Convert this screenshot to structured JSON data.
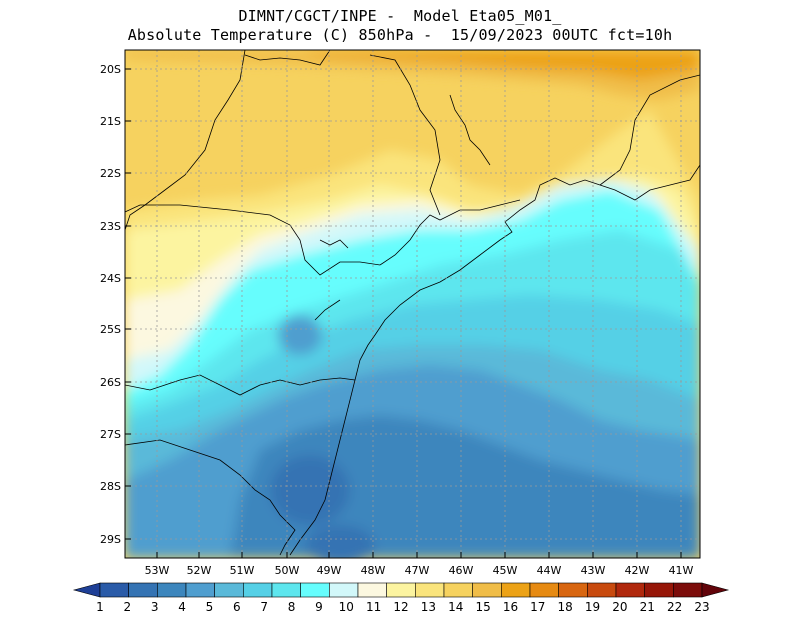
{
  "header": {
    "line1": "DIMNT/CGCT/INPE -  Model Eta05_M01_",
    "line2": "Absolute Temperature (C) 850hPa -  15/09/2023 00UTC fct=10h"
  },
  "map": {
    "lon_labels": [
      "53W",
      "52W",
      "51W",
      "50W",
      "49W",
      "48W",
      "47W",
      "46W",
      "45W",
      "44W",
      "43W",
      "42W",
      "41W"
    ],
    "lat_labels": [
      "20S",
      "21S",
      "22S",
      "23S",
      "24S",
      "25S",
      "26S",
      "27S",
      "28S",
      "29S"
    ],
    "grid": "dotted"
  },
  "colorbar": {
    "labels": [
      "1",
      "2",
      "3",
      "4",
      "5",
      "6",
      "7",
      "8",
      "9",
      "10",
      "11",
      "12",
      "13",
      "14",
      "15",
      "16",
      "17",
      "18",
      "19",
      "20",
      "21",
      "22",
      "23"
    ],
    "colors": [
      "#1e3f96",
      "#2a5ba8",
      "#3473b3",
      "#3c86bd",
      "#4f9ecf",
      "#5ab9d9",
      "#55d0e6",
      "#5de6ee",
      "#66fdfd",
      "#d2f8fa",
      "#fcf8e0",
      "#fcf4a0",
      "#fae47c",
      "#f6d25f",
      "#f0bd48",
      "#eca216",
      "#e68a12",
      "#d86610",
      "#c84a0e",
      "#b0280c",
      "#961608",
      "#7c0c0a",
      "#62040a"
    ]
  }
}
